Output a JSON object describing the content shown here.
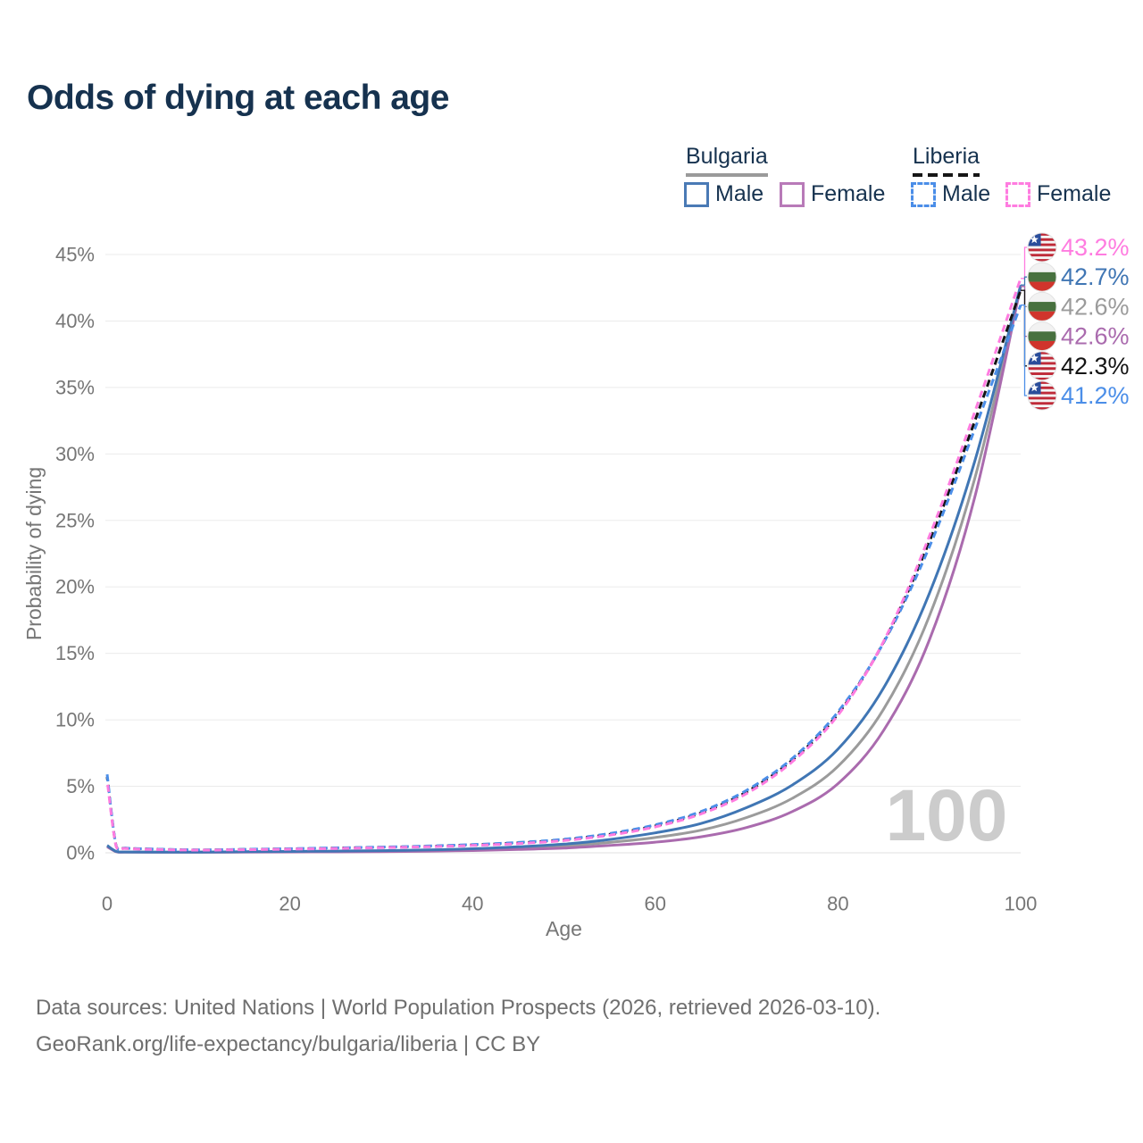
{
  "title": "Odds of dying at each age",
  "legend": {
    "bulgaria": {
      "label": "Bulgaria",
      "male_label": "Male",
      "female_label": "Female",
      "line_style": "solid",
      "male_color": "#4076b4",
      "female_color": "#aa6bae",
      "overall_color": "#9b9b9b"
    },
    "liberia": {
      "label": "Liberia",
      "male_label": "Male",
      "female_label": "Female",
      "line_style": "dashed",
      "male_color": "#4b8ee8",
      "female_color": "#ff7ce0",
      "overall_color": "#141414"
    }
  },
  "watermark": "100",
  "footer": {
    "line1": "Data sources: United Nations | World Population Prospects (2026, retrieved 2026-03-10).",
    "line2": "GeoRank.org/life-expectancy/bulgaria/liberia | CC BY"
  },
  "chart_data": {
    "type": "line",
    "title": "Odds of dying at each age",
    "xlabel": "Age",
    "ylabel": "Probability of dying",
    "xlim": [
      0,
      100
    ],
    "ylim": [
      0,
      45
    ],
    "x_ticks": [
      0,
      20,
      40,
      60,
      80,
      100
    ],
    "y_ticks_pct": [
      0,
      5,
      10,
      15,
      20,
      25,
      30,
      35,
      40,
      45
    ],
    "grid": "horizontal",
    "legend_position": "top-right",
    "x": [
      0,
      1,
      2,
      5,
      10,
      15,
      20,
      25,
      30,
      35,
      40,
      45,
      50,
      55,
      60,
      65,
      70,
      75,
      80,
      85,
      90,
      95,
      100
    ],
    "series": [
      {
        "id": "bulgaria-overall",
        "name": "Bulgaria (both sexes)",
        "country": "Bulgaria",
        "sex": "both",
        "color": "#9b9b9b",
        "dash": "solid",
        "values": [
          0.5,
          0.09,
          0.055,
          0.045,
          0.045,
          0.065,
          0.08,
          0.1,
          0.13,
          0.17,
          0.24,
          0.35,
          0.5,
          0.78,
          1.15,
          1.7,
          2.65,
          4.1,
          6.5,
          10.8,
          17.8,
          28.2,
          42.6
        ],
        "end_label": "42.6%"
      },
      {
        "id": "bulgaria-female",
        "name": "Bulgaria Female",
        "country": "Bulgaria",
        "sex": "female",
        "color": "#aa6bae",
        "dash": "solid",
        "values": [
          0.45,
          0.08,
          0.05,
          0.04,
          0.04,
          0.05,
          0.06,
          0.07,
          0.09,
          0.12,
          0.17,
          0.25,
          0.35,
          0.55,
          0.8,
          1.2,
          1.9,
          3.1,
          5.2,
          9.2,
          16.0,
          26.8,
          42.6
        ],
        "end_label": "42.6%"
      },
      {
        "id": "bulgaria-male",
        "name": "Bulgaria Male",
        "country": "Bulgaria",
        "sex": "male",
        "color": "#4076b4",
        "dash": "solid",
        "values": [
          0.55,
          0.1,
          0.06,
          0.05,
          0.05,
          0.08,
          0.1,
          0.13,
          0.16,
          0.22,
          0.3,
          0.45,
          0.65,
          1.0,
          1.5,
          2.2,
          3.4,
          5.1,
          7.8,
          12.4,
          19.5,
          29.5,
          42.7
        ],
        "end_label": "42.7%"
      },
      {
        "id": "liberia-overall",
        "name": "Liberia (both sexes)",
        "country": "Liberia",
        "sex": "both",
        "color": "#141414",
        "dash": "dashed",
        "values": [
          5.7,
          0.48,
          0.34,
          0.27,
          0.21,
          0.25,
          0.29,
          0.35,
          0.41,
          0.48,
          0.59,
          0.74,
          0.97,
          1.39,
          2.02,
          3.0,
          4.58,
          6.98,
          10.45,
          15.85,
          23.4,
          32.5,
          42.3
        ],
        "end_label": "42.3%"
      },
      {
        "id": "liberia-male",
        "name": "Liberia Male",
        "country": "Liberia",
        "sex": "male",
        "color": "#4b8ee8",
        "dash": "dashed",
        "values": [
          5.9,
          0.5,
          0.35,
          0.28,
          0.22,
          0.26,
          0.31,
          0.37,
          0.43,
          0.51,
          0.62,
          0.78,
          1.02,
          1.45,
          2.1,
          3.1,
          4.7,
          7.1,
          10.6,
          15.8,
          23.0,
          31.9,
          41.2
        ],
        "end_label": "41.2%"
      },
      {
        "id": "liberia-female",
        "name": "Liberia Female",
        "country": "Liberia",
        "sex": "female",
        "color": "#ff7ce0",
        "dash": "dashed",
        "values": [
          5.45,
          0.45,
          0.32,
          0.25,
          0.2,
          0.23,
          0.27,
          0.32,
          0.38,
          0.45,
          0.55,
          0.69,
          0.92,
          1.32,
          1.95,
          2.92,
          4.45,
          6.85,
          10.35,
          15.9,
          23.8,
          33.2,
          43.2
        ],
        "end_label": "43.2%"
      }
    ],
    "end_labels": [
      {
        "series": "liberia-female",
        "text": "43.2%",
        "color": "#ff7ce0",
        "flag": "liberia-flag-icon"
      },
      {
        "series": "bulgaria-male",
        "text": "42.7%",
        "color": "#4076b4",
        "flag": "bulgaria-flag-icon"
      },
      {
        "series": "bulgaria-overall",
        "text": "42.6%",
        "color": "#9b9b9b",
        "flag": "bulgaria-flag-icon"
      },
      {
        "series": "bulgaria-female",
        "text": "42.6%",
        "color": "#aa6bae",
        "flag": "bulgaria-flag-icon"
      },
      {
        "series": "liberia-overall",
        "text": "42.3%",
        "color": "#141414",
        "flag": "liberia-flag-icon"
      },
      {
        "series": "liberia-male",
        "text": "41.2%",
        "color": "#4b8ee8",
        "flag": "liberia-flag-icon"
      }
    ],
    "flag_colors": {
      "bulgaria": {
        "white": "#f2f2f2",
        "green": "#48713f",
        "red": "#d0342c"
      },
      "liberia": {
        "red": "#bf2b39",
        "white": "#f5f5f5",
        "blue": "#2a4d9b",
        "star": "#ffffff"
      }
    }
  }
}
